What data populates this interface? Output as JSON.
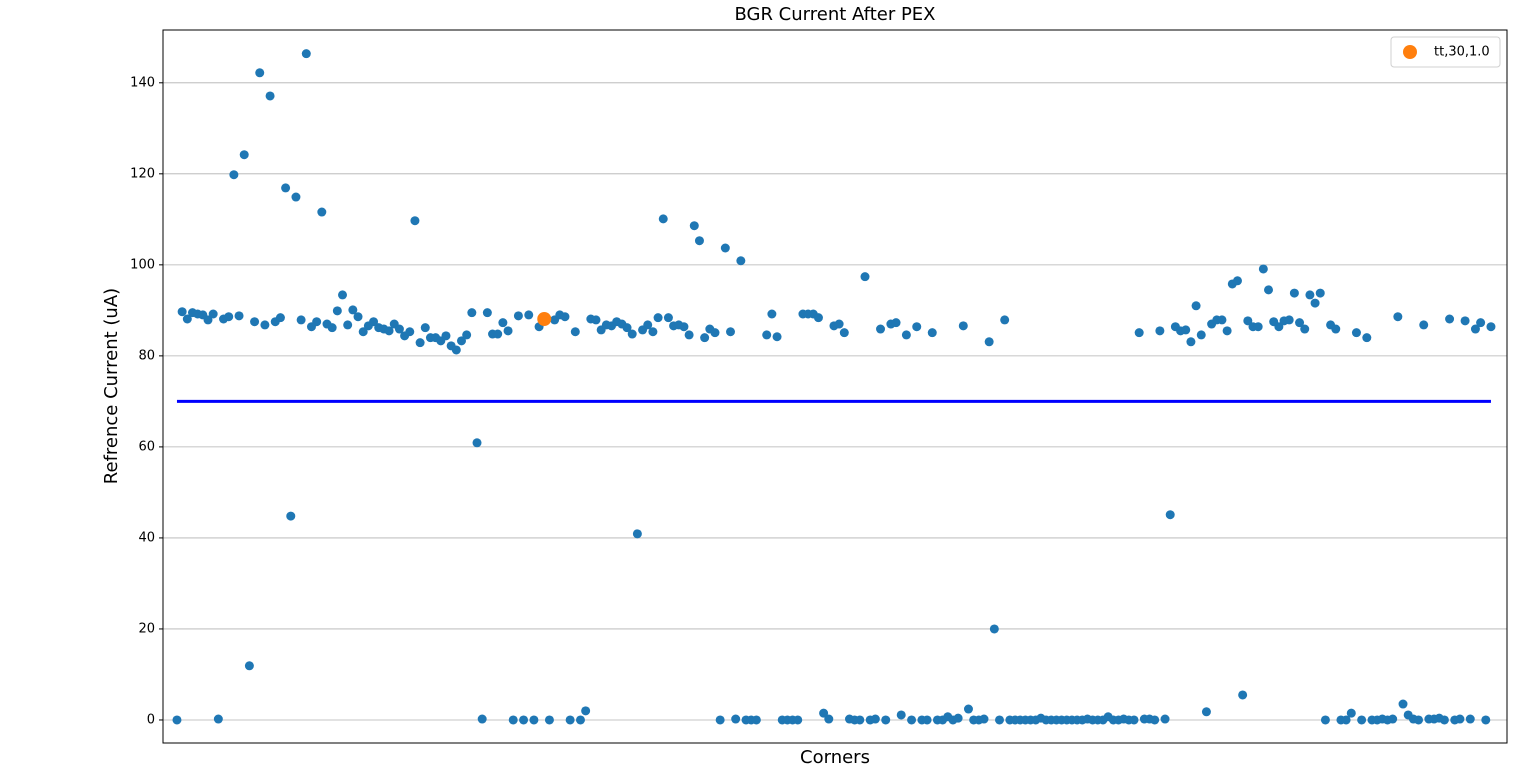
{
  "chart_data": {
    "type": "scatter",
    "title": "BGR Current After PEX",
    "x_label": "Corners",
    "y_label": "Refrence Current (uA)",
    "xlim": [
      -2.7,
      257.1
    ],
    "ylim": [
      -5.06,
      151.6
    ],
    "yticks": [
      0,
      20,
      40,
      60,
      80,
      100,
      120,
      140
    ],
    "grid": "y",
    "legend": "upper right",
    "reference_line": {
      "y": 70,
      "xmin": 0,
      "xmax": 254,
      "color": "#0000ff"
    },
    "series": [
      {
        "color": "#1f77b4",
        "size": 4.5,
        "x": [
          0,
          1,
          2,
          3,
          4,
          5,
          6,
          7,
          8,
          9,
          10,
          11,
          12,
          13,
          14,
          15,
          16,
          17,
          18,
          19,
          20,
          21,
          22,
          23,
          24,
          25,
          26,
          27,
          28,
          29,
          30,
          31,
          32,
          33,
          34,
          35,
          36,
          37,
          38,
          39,
          40,
          41,
          42,
          43,
          44,
          45,
          46,
          47,
          48,
          49,
          50,
          51,
          52,
          53,
          54,
          55,
          56,
          57,
          58,
          59,
          60,
          61,
          62,
          63,
          64,
          65,
          66,
          67,
          68,
          69,
          70,
          72,
          73,
          74,
          75,
          76,
          77,
          78,
          79,
          80,
          81,
          82,
          83,
          84,
          85,
          86,
          87,
          88,
          89,
          90,
          91,
          92,
          93,
          94,
          95,
          96,
          97,
          98,
          99,
          100,
          101,
          102,
          103,
          104,
          105,
          106,
          107,
          108,
          109,
          110,
          111,
          112,
          114,
          115,
          116,
          117,
          118,
          119,
          120,
          121,
          122,
          123,
          124,
          125,
          126,
          127,
          128,
          129,
          130,
          131,
          132,
          133,
          134,
          135,
          136,
          137,
          138,
          139,
          140,
          141,
          142,
          143,
          144,
          145,
          146,
          147,
          148,
          149,
          150,
          151,
          152,
          153,
          154,
          155,
          156,
          157,
          158,
          159,
          160,
          161,
          162,
          163,
          164,
          165,
          166,
          167,
          168,
          169,
          170,
          171,
          172,
          173,
          174,
          175,
          176,
          177,
          178,
          179,
          180,
          181,
          182,
          183,
          184,
          185,
          186,
          187,
          188,
          189,
          190,
          191,
          192,
          193,
          194,
          195,
          196,
          197,
          198,
          199,
          200,
          201,
          202,
          203,
          204,
          205,
          206,
          207,
          208,
          209,
          210,
          211,
          212,
          213,
          214,
          215,
          216,
          217,
          218,
          219,
          220,
          221,
          222,
          223,
          224,
          225,
          226,
          227,
          228,
          229,
          230,
          231,
          232,
          233,
          234,
          235,
          236,
          237,
          238,
          239,
          240,
          241,
          242,
          243,
          244,
          245,
          246,
          247,
          248,
          249,
          250,
          251,
          252,
          253,
          254
        ],
        "values": [
          0,
          89.7,
          88.1,
          89.5,
          89.2,
          89.0,
          87.9,
          89.2,
          0.2,
          88.1,
          88.6,
          119.8,
          88.8,
          124.2,
          11.9,
          87.5,
          142.2,
          86.8,
          137.1,
          87.5,
          88.4,
          116.9,
          44.8,
          114.9,
          87.9,
          146.4,
          86.4,
          87.5,
          111.6,
          87.0,
          86.2,
          89.9,
          93.4,
          86.8,
          90.1,
          88.6,
          85.3,
          86.6,
          87.5,
          86.2,
          85.9,
          85.5,
          87.0,
          85.9,
          84.4,
          85.3,
          109.7,
          82.9,
          86.2,
          84.0,
          84.0,
          83.3,
          84.4,
          82.2,
          81.3,
          83.3,
          84.6,
          89.5,
          60.9,
          0.2,
          89.5,
          84.8,
          84.8,
          87.3,
          85.5,
          0,
          88.8,
          0,
          89.0,
          0,
          86.4,
          0,
          87.9,
          89.0,
          88.6,
          0,
          85.3,
          0,
          2.0,
          88.1,
          87.9,
          85.7,
          86.8,
          86.6,
          87.5,
          87.0,
          86.2,
          84.8,
          40.9,
          85.7,
          86.8,
          85.3,
          88.4,
          110.1,
          88.4,
          86.6,
          86.8,
          86.4,
          84.6,
          108.6,
          105.3,
          84.0,
          85.9,
          85.1,
          0,
          103.7,
          85.3,
          0.2,
          100.9,
          0,
          0,
          0,
          84.6,
          89.2,
          84.2,
          0,
          0,
          0,
          0,
          89.2,
          89.2,
          89.2,
          88.4,
          1.5,
          0.2,
          86.6,
          87.0,
          85.1,
          0.2,
          0,
          0,
          97.4,
          0,
          0.2,
          85.9,
          0,
          87.0,
          87.3,
          1.1,
          84.6,
          0,
          86.4,
          0,
          0,
          85.1,
          0,
          0,
          0.7,
          0,
          0.4,
          86.6,
          2.4,
          0,
          0,
          0.2,
          83.1,
          20.0,
          0,
          87.9,
          0,
          0,
          0,
          0,
          0,
          0,
          0.4,
          0,
          0,
          0,
          0,
          0,
          0,
          0,
          0,
          0.2,
          0,
          0,
          0,
          0.7,
          0,
          0,
          0.2,
          0,
          0,
          85.1,
          0.2,
          0.2,
          0,
          85.5,
          0.2,
          45.1,
          86.4,
          85.5,
          85.7,
          83.1,
          91.0,
          84.6,
          1.8,
          87.0,
          87.9,
          87.9,
          85.5,
          95.8,
          96.5,
          5.5,
          87.7,
          86.4,
          86.4,
          99.1,
          94.5,
          87.5,
          86.4,
          87.7,
          87.9,
          93.8,
          87.3,
          85.9,
          93.4,
          91.6,
          93.8,
          0,
          86.8,
          85.9,
          0,
          0,
          1.5,
          85.1,
          0,
          84.0,
          0,
          0,
          0.2,
          0,
          0.2,
          88.6,
          3.5,
          1.1,
          0.2,
          0,
          86.8,
          0.2,
          0.2,
          0.4,
          0,
          88.1,
          0,
          0.2,
          87.7,
          0.2,
          85.9,
          87.3,
          0,
          86.4
        ]
      },
      {
        "name": "tt,30,1.0",
        "color": "#ff7f0e",
        "size": 7,
        "x": [
          71
        ],
        "values": [
          88.1
        ]
      }
    ]
  }
}
